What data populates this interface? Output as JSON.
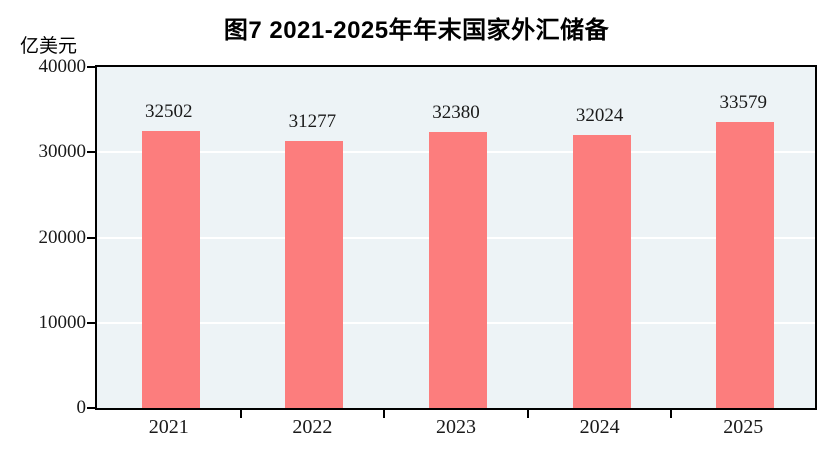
{
  "title": "图7  2021-2025年年末国家外汇储备",
  "y_axis_unit": "亿美元",
  "colors": {
    "bar_fill": "#fc7d7d",
    "plot_background": "#edf3f6",
    "gridline": "#ffffff",
    "axis_and_text": "#000000"
  },
  "chart_data": {
    "type": "bar",
    "title": "图7  2021-2025年年末国家外汇储备",
    "ylabel": "亿美元",
    "categories": [
      "2021",
      "2022",
      "2023",
      "2024",
      "2025"
    ],
    "values": [
      32502,
      31277,
      32380,
      32024,
      33579
    ],
    "data_labels": [
      "32502",
      "31277",
      "32380",
      "32024",
      "33579"
    ],
    "ylim": [
      0,
      40000
    ],
    "yticks": [
      0,
      10000,
      20000,
      30000,
      40000
    ],
    "ytick_labels": [
      "0",
      "10000",
      "20000",
      "30000",
      "40000"
    ],
    "grid": "horizontal",
    "gridline_values": [
      10000,
      20000,
      30000
    ],
    "legend_position": "none"
  }
}
